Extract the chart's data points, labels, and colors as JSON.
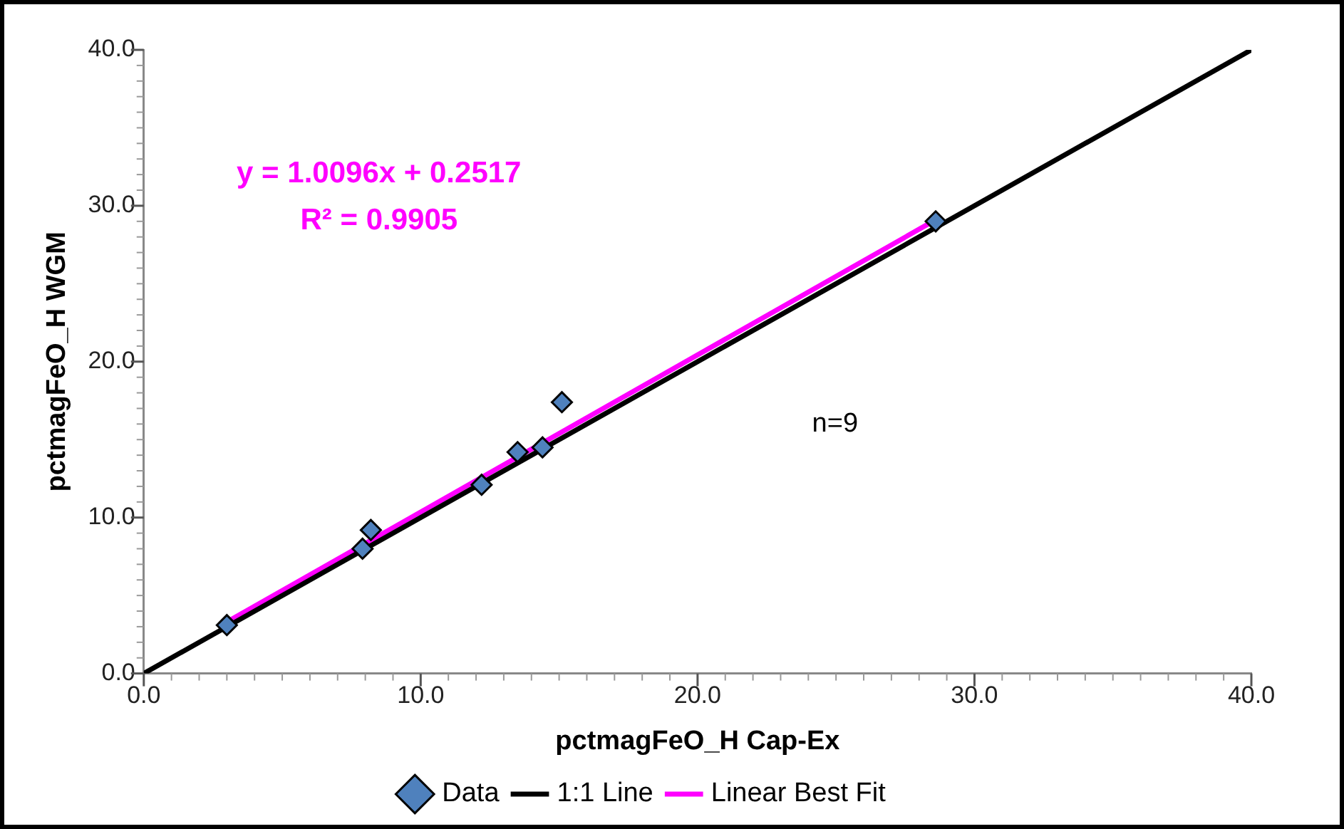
{
  "chart_data": {
    "type": "scatter",
    "xlabel": "pctmagFeO_H Cap-Ex",
    "ylabel": "pctmagFeO_H WGM",
    "series": [
      {
        "name": "Data",
        "color": "#4f81bd",
        "marker": "diamond",
        "x": [
          3.0,
          7.9,
          8.2,
          12.2,
          13.5,
          14.4,
          15.1,
          28.6
        ],
        "values": [
          3.1,
          8.0,
          9.2,
          12.1,
          14.2,
          14.5,
          17.4,
          29.0
        ]
      },
      {
        "name": "1:1 Line",
        "type": "line",
        "color": "#000000",
        "marker": "none",
        "x": [
          0,
          40
        ],
        "values": [
          0,
          40
        ]
      },
      {
        "name": "Linear Best Fit",
        "type": "line",
        "color": "#ff00ff",
        "marker": "none",
        "x": [
          3.0,
          28.6
        ],
        "values": [
          3.3,
          29.1
        ]
      }
    ],
    "xlim": [
      0,
      40
    ],
    "ylim": [
      0,
      40
    ],
    "xticks": [
      {
        "value": 0,
        "label": "0.0"
      },
      {
        "value": 10,
        "label": "10.0"
      },
      {
        "value": 20,
        "label": "20.0"
      },
      {
        "value": 30,
        "label": "30.0"
      },
      {
        "value": 40,
        "label": "40.0"
      }
    ],
    "yticks": [
      {
        "value": 0,
        "label": "0.0"
      },
      {
        "value": 10,
        "label": "10.0"
      },
      {
        "value": 20,
        "label": "20.0"
      },
      {
        "value": 30,
        "label": "30.0"
      },
      {
        "value": 40,
        "label": "40.0"
      }
    ],
    "annotations": [
      "y = 1.0096x + 0.2517",
      "R² = 0.9905",
      "n=9"
    ],
    "grid": false,
    "legend": "bottom"
  }
}
